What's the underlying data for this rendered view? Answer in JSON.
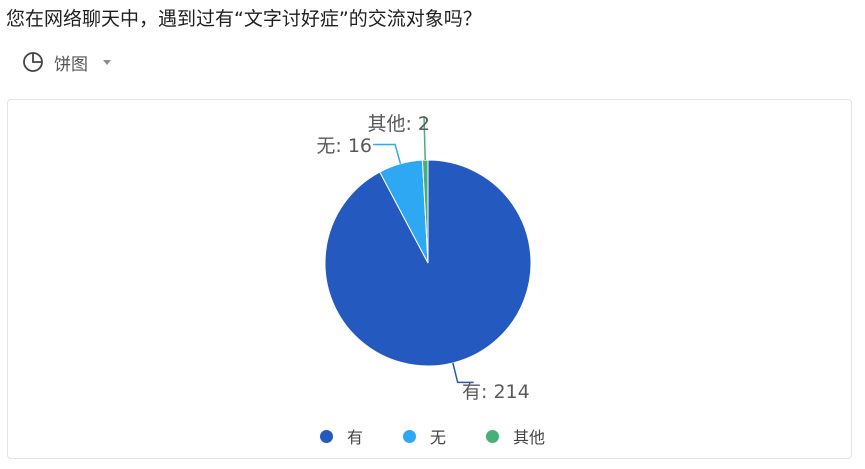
{
  "question": {
    "title": "您在网络聊天中，遇到过有“文字讨好症”的交流对象吗？"
  },
  "chart_type_selector": {
    "label": "饼图",
    "icon": "pie-chart-icon"
  },
  "chart_data": {
    "type": "pie",
    "categories": [
      "有",
      "无",
      "其他"
    ],
    "values": [
      214,
      16,
      2
    ],
    "colors": [
      "#2459bf",
      "#2ea8f2",
      "#45b07a"
    ],
    "data_labels": [
      "有: 214",
      "无: 16",
      "其他: 2"
    ],
    "legend_position": "bottom",
    "start_angle": "top, clockwise"
  },
  "legend": {
    "items": [
      {
        "label": "有",
        "color": "#2459bf"
      },
      {
        "label": "无",
        "color": "#2ea8f2"
      },
      {
        "label": "其他",
        "color": "#45b07a"
      }
    ]
  }
}
